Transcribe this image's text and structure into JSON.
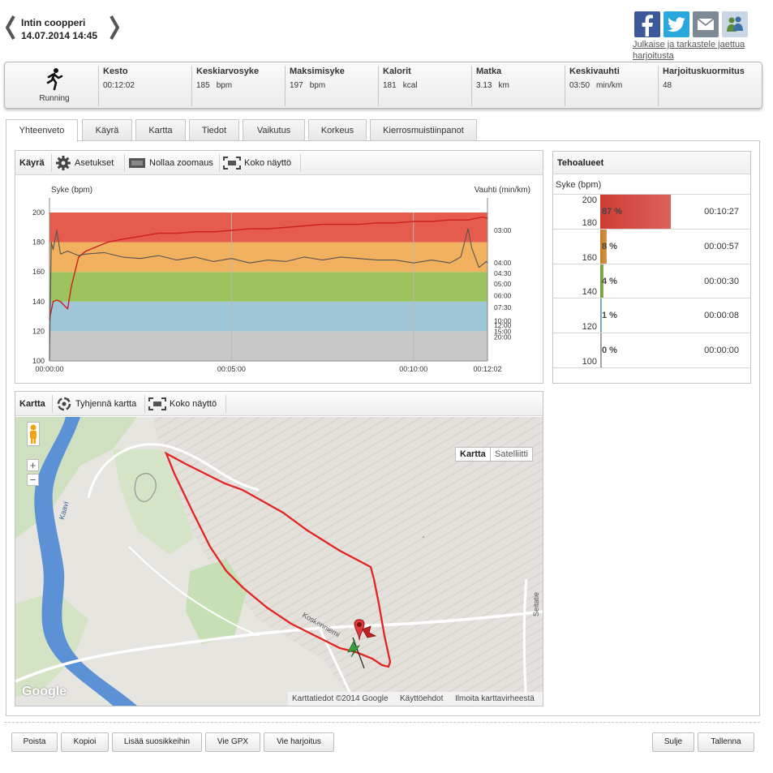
{
  "header": {
    "workout_name": "Intin coopperi",
    "workout_datetime": "14.07.2014 14:45",
    "share_text": "Julkaise ja tarkastele jaettua harjoitusta",
    "share_icons": [
      "facebook-icon",
      "twitter-icon",
      "mail-icon",
      "users-icon"
    ],
    "share_colors": {
      "facebook": "#3b5998",
      "twitter": "#2aa7dd",
      "mail": "#7d8a95",
      "users": "#c9d6e3"
    }
  },
  "summary": {
    "sport": "Running",
    "stats": [
      {
        "label": "Kesto",
        "value": "00:12:02",
        "unit": ""
      },
      {
        "label": "Keskiarvosyke",
        "value": "185",
        "unit": "bpm"
      },
      {
        "label": "Maksimisyke",
        "value": "197",
        "unit": "bpm"
      },
      {
        "label": "Kalorit",
        "value": "181",
        "unit": "kcal"
      },
      {
        "label": "Matka",
        "value": "3.13",
        "unit": "km"
      },
      {
        "label": "Keskivauhti",
        "value": "03:50",
        "unit": "min/km"
      },
      {
        "label": "Harjoituskuormitus",
        "value": "48",
        "unit": ""
      }
    ]
  },
  "tabs": [
    "Yhteenveto",
    "Käyrä",
    "Kartta",
    "Tiedot",
    "Vaikutus",
    "Korkeus",
    "Kierrosmuistiinpanot"
  ],
  "curve_panel": {
    "title": "Käyrä",
    "settings": "Asetukset",
    "reset_zoom": "Nollaa zoomaus",
    "fullscreen": "Koko näyttö"
  },
  "chart_data": {
    "type": "line",
    "ylabel_left": "Syke (bpm)",
    "ylabel_right": "Vauhti (min/km)",
    "ylim": [
      100,
      200
    ],
    "yticks": [
      100,
      120,
      140,
      160,
      180,
      200
    ],
    "xticks": [
      "00:00:00",
      "00:05:00",
      "00:10:00",
      "00:12:02"
    ],
    "right_ticks": [
      "03:00",
      "04:00",
      "04:30",
      "05:00",
      "06:00",
      "07:30",
      "10:00",
      "12:00",
      "15:00",
      "20:00"
    ],
    "zones": [
      {
        "from": 100,
        "to": 120,
        "color": "#c8c8c8"
      },
      {
        "from": 120,
        "to": 140,
        "color": "#9fc6d7"
      },
      {
        "from": 140,
        "to": 160,
        "color": "#9dc35e"
      },
      {
        "from": 160,
        "to": 180,
        "color": "#f1b15f"
      },
      {
        "from": 180,
        "to": 200,
        "color": "#e55b4d"
      }
    ],
    "series": [
      {
        "color": "#cc1f1f",
        "x": [
          0,
          0.1,
          0.2,
          0.3,
          0.5,
          0.6,
          0.8,
          1.0,
          1.3,
          1.6,
          2.0,
          2.5,
          3.0,
          3.5,
          4.0,
          4.5,
          5.0,
          5.5,
          6.0,
          6.5,
          7.0,
          7.5,
          8.0,
          8.5,
          9.0,
          9.5,
          10.0,
          10.5,
          11.0,
          11.5,
          11.7,
          11.9,
          12.03
        ],
        "values": [
          128,
          140,
          141,
          140,
          135,
          150,
          170,
          174,
          177,
          180,
          182,
          184,
          186,
          186,
          187,
          187,
          188,
          189,
          189,
          190,
          191,
          192,
          192,
          192,
          193,
          193,
          194,
          194,
          195,
          195,
          196,
          197,
          196
        ]
      },
      {
        "color": "#555555",
        "x": [
          0,
          0.05,
          0.1,
          0.2,
          0.3,
          0.5,
          0.8,
          1.0,
          1.5,
          2.0,
          2.5,
          3.0,
          3.5,
          4.0,
          4.5,
          5.0,
          5.5,
          6.0,
          6.5,
          7.0,
          7.5,
          8.0,
          8.5,
          9.0,
          9.5,
          10.0,
          10.5,
          11.0,
          11.3,
          11.5,
          11.6,
          11.8,
          12.0,
          12.03
        ],
        "values": [
          100,
          180,
          175,
          188,
          172,
          174,
          171,
          172,
          173,
          170,
          169,
          171,
          168,
          170,
          167,
          169,
          166,
          168,
          167,
          170,
          168,
          170,
          169,
          168,
          168,
          166,
          168,
          166,
          170,
          189,
          176,
          163,
          167,
          166
        ]
      }
    ]
  },
  "zones_panel": {
    "title": "Tehoalueet",
    "subtitle": "Syke (bpm)",
    "rows": [
      {
        "upper": "200",
        "lower": "180",
        "percent": "87 %",
        "pct": 87,
        "time": "00:10:27",
        "color": "#d03c33"
      },
      {
        "upper": "",
        "lower": "160",
        "percent": "8 %",
        "pct": 8,
        "time": "00:00:57",
        "color": "#c87a22"
      },
      {
        "upper": "",
        "lower": "140",
        "percent": "4 %",
        "pct": 4,
        "time": "00:00:30",
        "color": "#6d9a32"
      },
      {
        "upper": "",
        "lower": "120",
        "percent": "1 %",
        "pct": 1,
        "time": "00:00:08",
        "color": "#6aa0b8"
      },
      {
        "upper": "",
        "lower": "100",
        "percent": "0 %",
        "pct": 0,
        "time": "00:00:00",
        "color": "#999999"
      }
    ]
  },
  "map_panel": {
    "title": "Kartta",
    "clear_map": "Tyhjennä kartta",
    "fullscreen": "Koko näyttö",
    "map_type": "Kartta",
    "satellite": "Satelliitti",
    "zoom_in": "+",
    "zoom_out": "−",
    "logo": "Google",
    "map_data": "Karttatiedot ©2014 Google",
    "terms": "Käyttöehdot",
    "report": "Ilmoita karttavirheestä",
    "label_kaavi": "Kaavi",
    "label_koskenniemi": "Koskenniemi",
    "label_seitatie": "Seitatie"
  },
  "bottom_buttons": {
    "delete": "Poista",
    "copy": "Kopioi",
    "favorite": "Lisää suosikkeihin",
    "gpx": "Vie GPX",
    "export": "Vie harjoitus",
    "close": "Sulje",
    "save": "Tallenna"
  }
}
